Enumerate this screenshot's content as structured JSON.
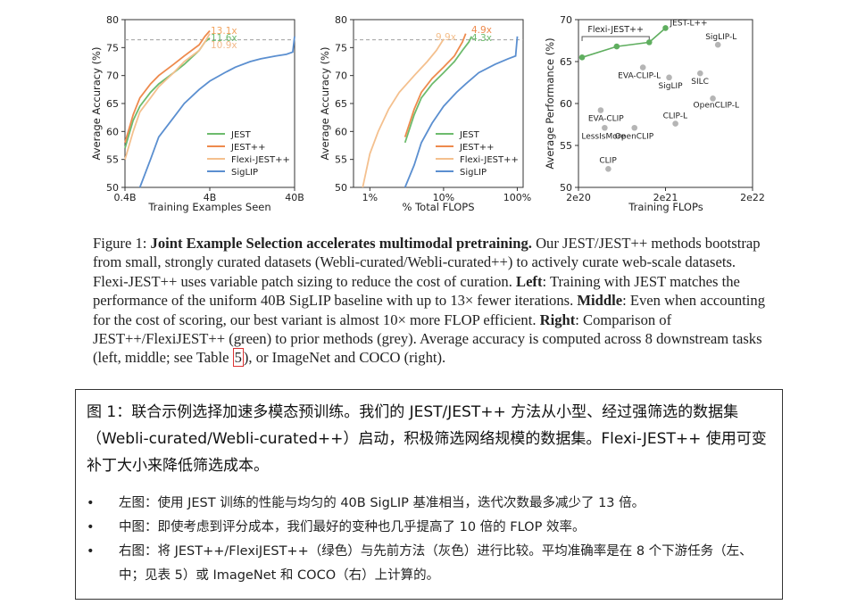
{
  "chart_data": [
    {
      "type": "line",
      "xlabel": "Training Examples Seen",
      "ylabel": "Average Accuracy (%)",
      "xscale": "log",
      "xlim": [
        0.4,
        40
      ],
      "ylim": [
        50,
        80
      ],
      "xticks": [
        "0.4B",
        "4B",
        "40B"
      ],
      "yticks": [
        "50",
        "55",
        "60",
        "65",
        "70",
        "75",
        "80"
      ],
      "reference_line": 76.4,
      "annotations": [
        {
          "text": "13.1x",
          "color": "#f2a35e"
        },
        {
          "text": "11.6x",
          "color": "#6dbb6d"
        },
        {
          "text": "10.9x",
          "color": "#f2b98a"
        }
      ],
      "series": [
        {
          "name": "JEST",
          "color": "#6dbb6d",
          "x": [
            0.4,
            0.5,
            0.6,
            0.8,
            1.0,
            1.5,
            2.0,
            3.0,
            3.5,
            4.0
          ],
          "y": [
            57,
            62,
            64.5,
            67,
            68.5,
            70.5,
            72,
            74.5,
            76,
            76.7
          ]
        },
        {
          "name": "JEST++",
          "color": "#ee8a4d",
          "x": [
            0.4,
            0.5,
            0.6,
            0.8,
            1.0,
            1.5,
            2.0,
            3.0,
            3.5,
            4.0
          ],
          "y": [
            58,
            63,
            66,
            68.5,
            70,
            72,
            73.5,
            75.5,
            77,
            78
          ]
        },
        {
          "name": "Flexi-JEST++",
          "color": "#f4c08e",
          "x": [
            0.4,
            0.5,
            0.6,
            0.8,
            1.0,
            1.5,
            2.0,
            3.0,
            3.5,
            4.0
          ],
          "y": [
            55,
            60,
            63.5,
            66,
            68,
            70.5,
            72.5,
            74.5,
            76,
            77.5
          ]
        },
        {
          "name": "SigLIP",
          "color": "#5b8fd0",
          "x": [
            0.6,
            0.8,
            1.0,
            1.5,
            2.0,
            3.0,
            4.0,
            6.0,
            8.0,
            12.0,
            16.0,
            24.0,
            32.0,
            38.0,
            40.0
          ],
          "y": [
            50,
            55,
            59,
            62.5,
            65,
            67.5,
            69,
            70.5,
            71.5,
            72.5,
            73,
            73.5,
            73.8,
            74.2,
            77
          ]
        }
      ]
    },
    {
      "type": "line",
      "xlabel": "% Total FLOPS",
      "ylabel": "Average Accuracy (%)",
      "xscale": "log",
      "xlim": [
        0.6,
        120
      ],
      "ylim": [
        50,
        80
      ],
      "xticks": [
        "1%",
        "10%",
        "100%"
      ],
      "yticks": [
        "50",
        "55",
        "60",
        "65",
        "70",
        "75",
        "80"
      ],
      "reference_line": 76.4,
      "annotations": [
        {
          "text": "4.9x",
          "color": "#ee8a4d"
        },
        {
          "text": "9.9x",
          "color": "#f4c08e"
        },
        {
          "text": "4.3x",
          "color": "#6dbb6d"
        }
      ],
      "series": [
        {
          "name": "JEST",
          "color": "#6dbb6d",
          "x": [
            3,
            4,
            5,
            7,
            10,
            14,
            18,
            22,
            24
          ],
          "y": [
            58,
            63,
            66,
            68.5,
            70.5,
            72.5,
            74.5,
            76,
            77
          ]
        },
        {
          "name": "JEST++",
          "color": "#ee8a4d",
          "x": [
            3,
            4,
            5,
            7,
            10,
            14,
            18,
            20
          ],
          "y": [
            59,
            64,
            67,
            69.5,
            71.5,
            73.5,
            76,
            77.5
          ]
        },
        {
          "name": "Flexi-JEST++",
          "color": "#f4c08e",
          "x": [
            0.8,
            1.0,
            1.3,
            1.8,
            2.5,
            4,
            6,
            8,
            10
          ],
          "y": [
            50,
            56,
            60,
            64,
            67,
            70,
            72.5,
            74.5,
            76.5
          ]
        },
        {
          "name": "SigLIP",
          "color": "#5b8fd0",
          "x": [
            3,
            4,
            5,
            7,
            10,
            15,
            20,
            30,
            50,
            75,
            95,
            100
          ],
          "y": [
            50,
            54,
            58,
            61.5,
            64.5,
            67,
            68.5,
            70.5,
            72,
            73,
            73.5,
            77
          ]
        }
      ]
    },
    {
      "type": "scatter",
      "xlabel": "Training FLOPs",
      "ylabel": "Average Performance (%)",
      "xscale": "log",
      "xlim": [
        "2e20",
        "2e22"
      ],
      "ylim": [
        50,
        70
      ],
      "xticks": [
        "2e20",
        "2e21",
        "2e22"
      ],
      "yticks": [
        "50",
        "55",
        "60",
        "65",
        "70"
      ],
      "bracket_label": "Flexi-JEST++",
      "green_points": [
        {
          "label": "",
          "x": "2.2e20",
          "y": 65.5
        },
        {
          "label": "",
          "x": "5.5e20",
          "y": 66.8
        },
        {
          "label": "",
          "x": "1.3e21",
          "y": 67.3
        },
        {
          "label": "JEST-L++",
          "x": "2.0e21",
          "y": 69
        }
      ],
      "grey_points": [
        {
          "label": "SigLIP-L",
          "x": "8.0e21",
          "y": 67
        },
        {
          "label": "EVA-CLIP-L",
          "x": "1.1e21",
          "y": 64.3
        },
        {
          "label": "SILC",
          "x": "5.0e21",
          "y": 63.6
        },
        {
          "label": "SigLIP",
          "x": "2.2e21",
          "y": 63.1
        },
        {
          "label": "OpenCLIP-L",
          "x": "7.0e21",
          "y": 60.6
        },
        {
          "label": "EVA-CLIP",
          "x": "3.6e20",
          "y": 59.2
        },
        {
          "label": "CLIP-L",
          "x": "2.6e21",
          "y": 57.6
        },
        {
          "label": "LessIsMore",
          "x": "4.0e20",
          "y": 57.1
        },
        {
          "label": "OpenCLIP",
          "x": "8.8e20",
          "y": 57.1
        },
        {
          "label": "CLIP",
          "x": "4.4e20",
          "y": 52.2
        }
      ]
    }
  ],
  "legend_labels": [
    "JEST",
    "JEST++",
    "Flexi-JEST++",
    "SigLIP"
  ],
  "caption": {
    "prefix": "Figure 1:  ",
    "bold_title": "Joint Example Selection accelerates multimodal pretraining.",
    "part1": " Our JEST/JEST++ methods bootstrap from small, strongly curated datasets (Webli-curated/Webli-curated++) to actively curate web-scale datasets. Flexi-JEST++ uses variable patch sizing to reduce the cost of curation. ",
    "left_label": "Left",
    "left_text": ": Training with JEST matches the performance of the uniform 40B SigLIP baseline with up to 13× fewer iterations. ",
    "middle_label": "Middle",
    "middle_text": ": Even when accounting for the cost of scoring, our best variant is almost 10× more FLOP efficient. ",
    "right_label": "Right",
    "right_text": ": Comparison of JEST++/FlexiJEST++ (green) to prior methods (grey). Average accuracy is computed across 8 downstream tasks (left, middle; see Table ",
    "table_ref": "5",
    "end_text": "), or ImageNet and COCO (right)."
  },
  "translation": {
    "heading": "图 1：联合示例选择加速多模态预训练。我们的 JEST/JEST++ 方法从小型、经过强筛选的数据集（Webli-curated/Webli-curated++）启动，积极筛选网络规模的数据集。Flexi-JEST++ 使用可变补丁大小来降低筛选成本。",
    "bullet_char": "•",
    "bullets": [
      "左图：使用 JEST 训练的性能与均匀的 40B SigLIP 基准相当，迭代次数最多减少了 13 倍。",
      "中图：即使考虑到评分成本，我们最好的变种也几乎提高了 10 倍的 FLOP 效率。",
      "右图：将 JEST++/FlexiJEST++（绿色）与先前方法（灰色）进行比较。平均准确率是在 8 个下游任务（左、中；见表 5）或 ImageNet 和 COCO（右）上计算的。"
    ]
  }
}
